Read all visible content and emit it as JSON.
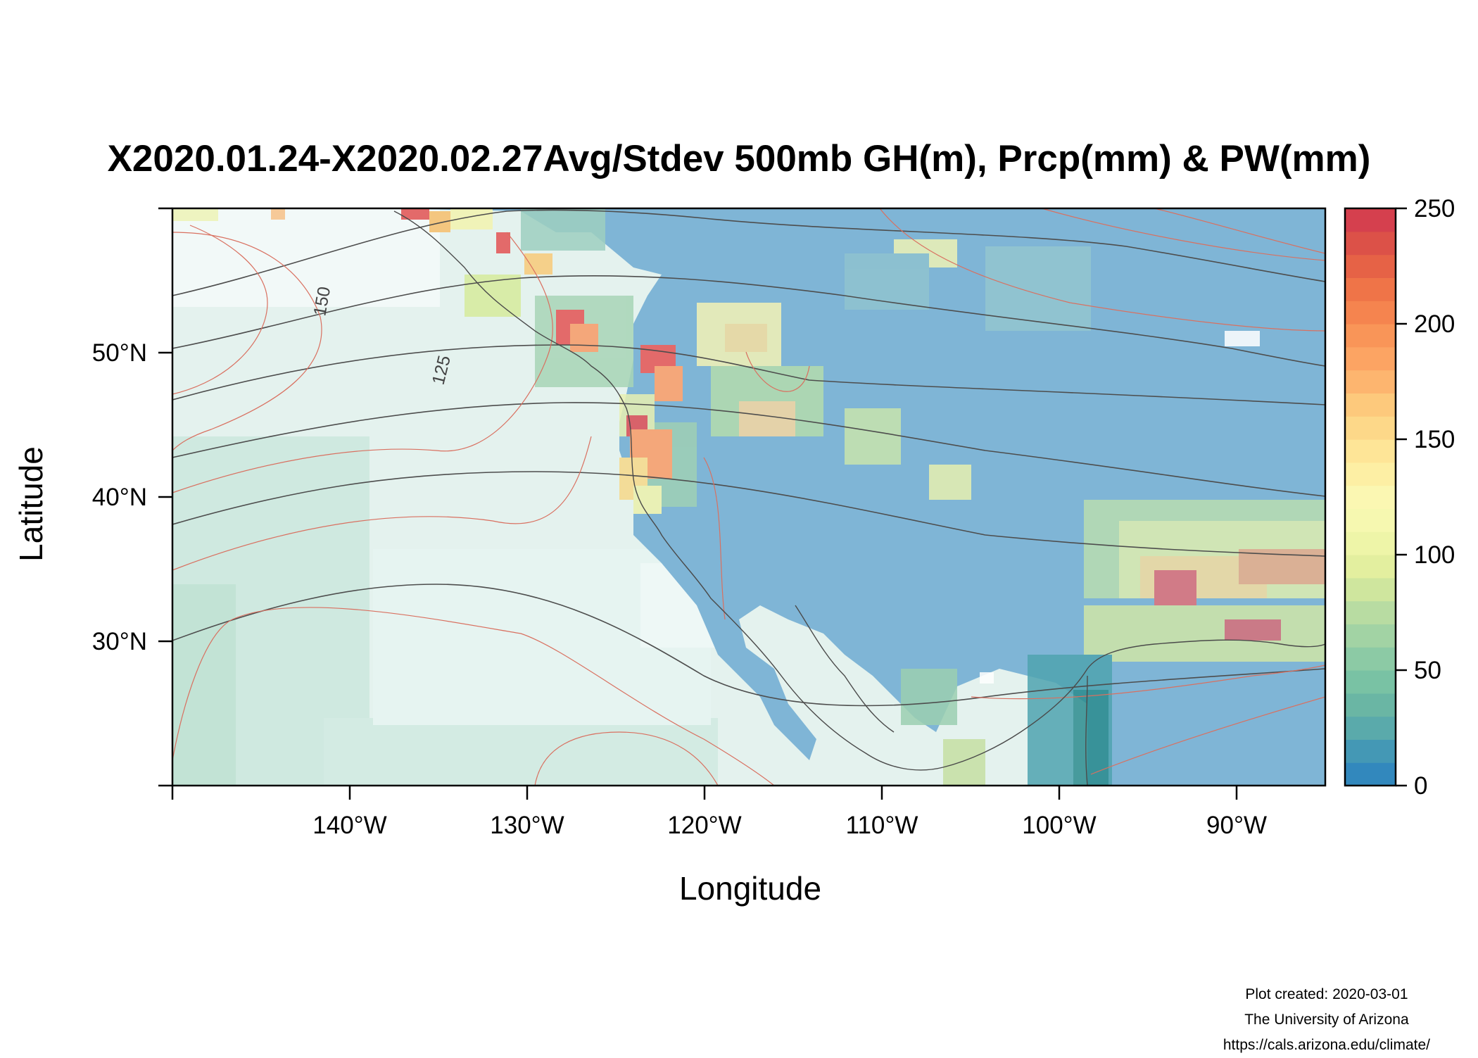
{
  "title": "X2020.01.24-X2020.02.27Avg/Stdev 500mb GH(m), Prcp(mm) & PW(mm)",
  "x_axis": {
    "title": "Longitude",
    "ticks": [
      {
        "value": -140,
        "label": "140°W"
      },
      {
        "value": -130,
        "label": "130°W"
      },
      {
        "value": -120,
        "label": "120°W"
      },
      {
        "value": -110,
        "label": "110°W"
      },
      {
        "value": -100,
        "label": "100°W"
      },
      {
        "value": -90,
        "label": "90°W"
      }
    ]
  },
  "y_axis": {
    "title": "Latitude",
    "ticks": [
      {
        "value": 30,
        "label": "30°N"
      },
      {
        "value": 40,
        "label": "40°N"
      },
      {
        "value": 50,
        "label": "50°N"
      }
    ]
  },
  "colorbar": {
    "ticks": [
      "0",
      "50",
      "100",
      "150",
      "200",
      "250"
    ],
    "tick_values": [
      0,
      50,
      100,
      150,
      200,
      250
    ],
    "range": [
      0,
      250
    ],
    "colors": [
      "#3288bd",
      "#4498b5",
      "#5aaaab",
      "#6ab6a4",
      "#79c2a4",
      "#8ccaa5",
      "#a2d3a4",
      "#b8dca2",
      "#cfe69e",
      "#e3ef9f",
      "#eef5a8",
      "#f6f8b0",
      "#fbf7b2",
      "#fdefa4",
      "#fee597",
      "#fdd889",
      "#fdc97c",
      "#fdb56f",
      "#fca463",
      "#f99558",
      "#f5844f",
      "#ef7448",
      "#e66246",
      "#dc5148",
      "#d5404e"
    ]
  },
  "contour_labels": [
    "150",
    "125"
  ],
  "credits": {
    "created": "Plot created: 2020-03-01",
    "org": "The University of Arizona",
    "url": "https://cals.arizona.edu/climate/"
  },
  "colors": {
    "ocean_light": "#eef6f4",
    "gh_contour": "#4d4d4d",
    "stdev_contour": "#d97060"
  }
}
